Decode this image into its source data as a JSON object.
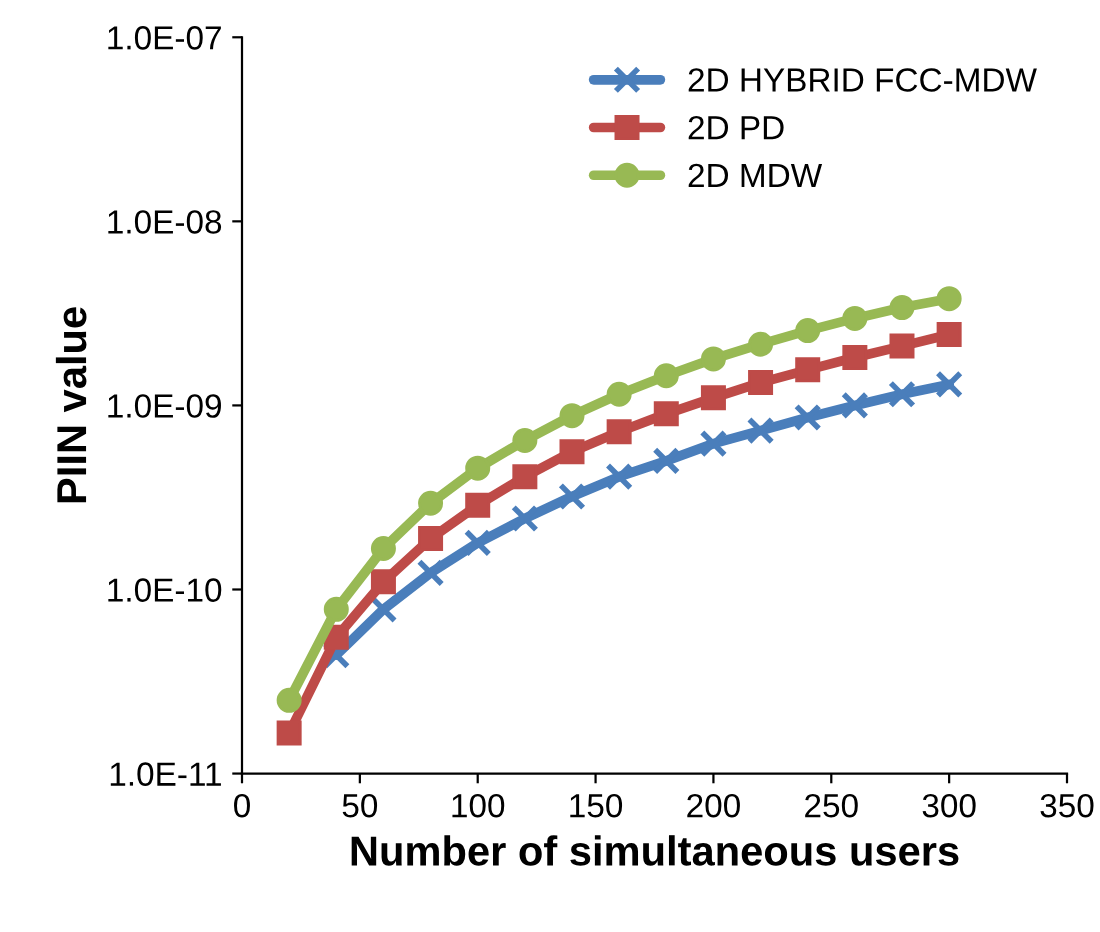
{
  "chart_data": {
    "type": "line",
    "xlabel": "Number of simultaneous users",
    "ylabel": "PIIN value",
    "x": [
      20,
      40,
      60,
      80,
      100,
      120,
      140,
      160,
      180,
      200,
      220,
      240,
      260,
      280,
      300
    ],
    "series": [
      {
        "name": "2D HYBRID FCC-MDW",
        "color": "#4a7ebb",
        "marker": "cross",
        "values": [
          null,
          4.4e-11,
          7.8e-11,
          1.23e-10,
          1.79e-10,
          2.43e-10,
          3.2e-10,
          4.1e-10,
          5e-10,
          6.2e-10,
          7.3e-10,
          8.6e-10,
          1e-09,
          1.15e-09,
          1.3e-09
        ]
      },
      {
        "name": "2D PD",
        "color": "#be4b48",
        "marker": "square",
        "values": [
          1.66e-11,
          5.5e-11,
          1.1e-10,
          1.89e-10,
          2.87e-10,
          4.1e-10,
          5.6e-10,
          7.2e-10,
          9e-10,
          1.1e-09,
          1.33e-09,
          1.56e-09,
          1.82e-09,
          2.1e-09,
          2.43e-09
        ]
      },
      {
        "name": "2D MDW",
        "color": "#98b954",
        "marker": "circle",
        "values": [
          2.5e-11,
          7.8e-11,
          1.67e-10,
          2.94e-10,
          4.56e-10,
          6.45e-10,
          8.8e-10,
          1.15e-09,
          1.45e-09,
          1.79e-09,
          2.15e-09,
          2.55e-09,
          2.97e-09,
          3.4e-09,
          3.8e-09
        ]
      }
    ],
    "log": "y",
    "xlim": [
      0,
      350
    ],
    "xticks": [
      0,
      50,
      100,
      150,
      200,
      250,
      300,
      350
    ],
    "ylim": [
      1e-11,
      1e-07
    ],
    "yticks": [
      {
        "value": 1e-11,
        "label": "1.0E-11"
      },
      {
        "value": 1e-10,
        "label": "1.0E-10"
      },
      {
        "value": 1e-09,
        "label": "1.0E-09"
      },
      {
        "value": 1e-08,
        "label": "1.0E-08"
      },
      {
        "value": 1e-07,
        "label": "1.0E-07"
      }
    ],
    "grid": false,
    "legend": "top right",
    "line_style": "solid"
  }
}
